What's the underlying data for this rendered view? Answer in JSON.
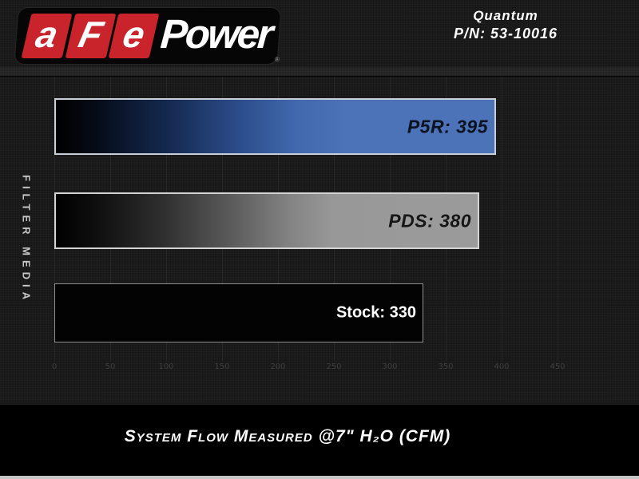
{
  "header": {
    "logo": {
      "letters": [
        "a",
        "F",
        "e"
      ],
      "word": "Power",
      "registered": "®"
    },
    "product": {
      "name": "Quantum",
      "part_number": "P/N: 53-10016"
    }
  },
  "chart_data": {
    "type": "bar",
    "orientation": "horizontal",
    "categories": [
      "P5R",
      "PDS",
      "Stock"
    ],
    "values": [
      395,
      380,
      330
    ],
    "series": [
      {
        "name": "P5R",
        "value": 395,
        "label": "P5R: 395",
        "style": "blue-gradient"
      },
      {
        "name": "PDS",
        "value": 380,
        "label": "PDS: 380",
        "style": "gray-gradient"
      },
      {
        "name": "Stock",
        "value": 330,
        "label": "Stock: 330",
        "style": "black"
      }
    ],
    "xticks": [
      0,
      50,
      100,
      150,
      200,
      250,
      300,
      350,
      400,
      450
    ],
    "xlim": [
      0,
      500
    ],
    "grid": true,
    "ylabel": "FILTER MEDIA",
    "caption": "System Flow Measured @7\" H₂O (CFM)"
  },
  "colors": {
    "brand_red": "#c9232b",
    "bar_blue": "#4c72b7",
    "bar_gray": "#9b9b9b",
    "bar_black": "#030303",
    "background": "#171717",
    "footer": "#000000"
  }
}
